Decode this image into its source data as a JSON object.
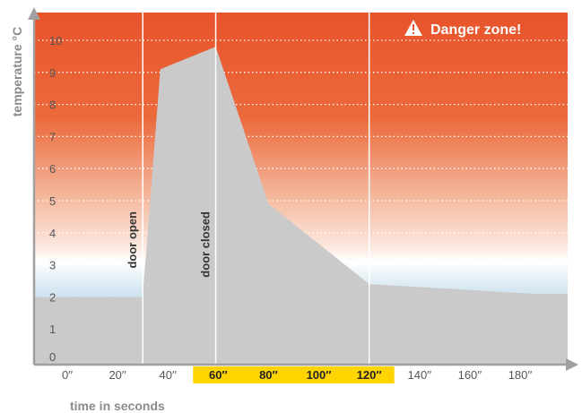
{
  "chart_data": {
    "type": "area",
    "x": [
      0,
      30,
      37,
      59,
      80,
      120,
      185
    ],
    "values": [
      2,
      2,
      9.1,
      9.8,
      4.9,
      2.4,
      2.1
    ],
    "xlim": [
      0,
      185
    ],
    "ylim": [
      0,
      10.8
    ],
    "x_ticks": [
      0,
      20,
      40,
      60,
      80,
      100,
      120,
      140,
      160,
      180
    ],
    "x_tick_labels": [
      "0′′",
      "20′′",
      "40′′",
      "60′′",
      "80′′",
      "100′′",
      "120′′",
      "140′′",
      "160′′",
      "180′′"
    ],
    "highlighted_x_ticks": [
      60,
      80,
      100,
      120
    ],
    "y_ticks": [
      0,
      1,
      2,
      3,
      4,
      5,
      6,
      7,
      8,
      9,
      10
    ],
    "y_tick_labels": [
      "0",
      "1",
      "2",
      "3",
      "4",
      "5",
      "6",
      "7",
      "8",
      "9",
      "10"
    ],
    "xlabel": "time in seconds",
    "ylabel": "temperature °C",
    "event_lines": [
      {
        "x": 30,
        "label": "door open"
      },
      {
        "x": 59,
        "label": "door closed"
      },
      {
        "x": 120,
        "label": ""
      }
    ],
    "annotation": "Danger zone!",
    "grid": "dotted horizontal",
    "colors": {
      "danger_band": "#e8532b",
      "safe_band": "#bcd9ea",
      "area_fill": "#cacaca",
      "highlight": "#ffd400",
      "axis": "#a0a0a0"
    }
  }
}
